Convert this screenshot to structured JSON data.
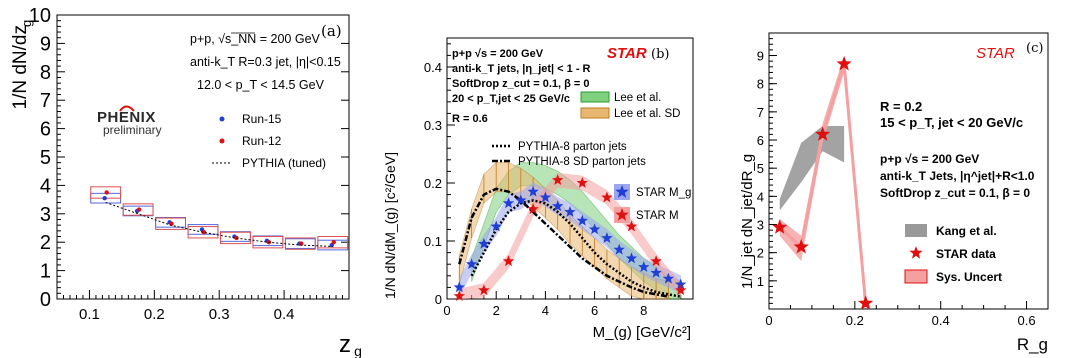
{
  "chart_data": [
    {
      "type": "scatter",
      "panel": "(a)",
      "xlabel": "z_g",
      "ylabel": "1/N dN/dz_g",
      "xlim": [
        0.05,
        0.5
      ],
      "ylim": [
        0,
        10
      ],
      "xticks": [
        "0.1",
        "0.2",
        "0.3",
        "0.4"
      ],
      "yticks": [
        "0",
        "1",
        "2",
        "3",
        "4",
        "5",
        "6",
        "7",
        "8",
        "9",
        "10"
      ],
      "annotations": [
        "p+p, √s_NN = 200 GeV",
        "anti-k_T R=0.3 jet, |η|<0.15",
        "12.0 < p_T < 14.5 GeV"
      ],
      "logo": [
        "PHENIX",
        "preliminary"
      ],
      "legend_position": "right",
      "x": [
        0.125,
        0.175,
        0.225,
        0.275,
        0.325,
        0.375,
        0.425,
        0.475
      ],
      "series": [
        {
          "name": "Run-15",
          "color": "#1f3fd6",
          "values": [
            3.55,
            3.1,
            2.7,
            2.45,
            2.2,
            2.05,
            1.95,
            1.9
          ]
        },
        {
          "name": "Run-12",
          "color": "#e01010",
          "values": [
            3.75,
            3.15,
            2.65,
            2.35,
            2.15,
            2.0,
            1.95,
            2.0
          ]
        },
        {
          "name": "PYTHIA (tuned)",
          "color": "#000000",
          "style": "dashed",
          "values": [
            3.4,
            3.0,
            2.6,
            2.35,
            2.15,
            2.0,
            1.9,
            1.85
          ]
        }
      ]
    },
    {
      "type": "scatter",
      "panel": "(b)",
      "title": "STAR",
      "xlabel": "M_(g) [GeV/c²]",
      "ylabel": "1/N dN/dM_(g) [c²/GeV]",
      "xlim": [
        0,
        10
      ],
      "ylim": [
        0,
        0.45
      ],
      "xticks": [
        "0",
        "2",
        "4",
        "6",
        "8"
      ],
      "yticks": [
        "0",
        "0.1",
        "0.2",
        "0.3",
        "0.4"
      ],
      "annotations": [
        "p+p √s = 200 GeV",
        "anti-k_T jets, |η_jet| < 1 - R",
        "SoftDrop z_cut = 0.1, β = 0",
        "20 < p_T,jet < 25 GeV/c",
        "R = 0.6"
      ],
      "series": [
        {
          "name": "Lee et al.",
          "color": "#2e9e2e",
          "x": [
            1,
            1.5,
            2,
            2.5,
            3,
            3.5,
            4,
            4.5,
            5,
            5.5,
            6,
            6.5,
            7,
            7.5,
            8,
            8.5,
            9,
            9.5
          ],
          "values": [
            0.05,
            0.11,
            0.17,
            0.2,
            0.215,
            0.215,
            0.21,
            0.2,
            0.185,
            0.165,
            0.14,
            0.115,
            0.09,
            0.07,
            0.05,
            0.035,
            0.02,
            0.01
          ]
        },
        {
          "name": "Lee et al. SD",
          "color": "#c07a1a",
          "x": [
            0.5,
            1,
            1.5,
            2,
            2.5,
            3,
            3.5,
            4,
            4.5,
            5,
            5.5,
            6,
            6.5,
            7,
            7.5,
            8,
            8.5,
            9
          ],
          "values": [
            0.05,
            0.13,
            0.19,
            0.21,
            0.21,
            0.2,
            0.185,
            0.165,
            0.145,
            0.12,
            0.1,
            0.08,
            0.06,
            0.045,
            0.03,
            0.02,
            0.01,
            0.005
          ]
        },
        {
          "name": "PYTHIA-8 parton jets",
          "color": "#000000",
          "x": [
            1,
            1.5,
            2,
            2.5,
            3,
            3.5,
            4,
            4.5,
            5,
            5.5,
            6,
            6.5,
            7,
            7.5,
            8,
            8.5,
            9,
            9.5
          ],
          "values": [
            0.04,
            0.08,
            0.12,
            0.15,
            0.165,
            0.17,
            0.165,
            0.15,
            0.13,
            0.105,
            0.08,
            0.06,
            0.045,
            0.03,
            0.02,
            0.012,
            0.008,
            0.004
          ]
        },
        {
          "name": "PYTHIA-8 SD parton jets",
          "color": "#000000",
          "x": [
            0.5,
            1,
            1.5,
            2,
            2.5,
            3,
            3.5,
            4,
            4.5,
            5,
            5.5,
            6,
            6.5,
            7,
            7.5,
            8,
            8.5,
            9
          ],
          "values": [
            0.06,
            0.14,
            0.18,
            0.19,
            0.185,
            0.17,
            0.15,
            0.13,
            0.11,
            0.09,
            0.07,
            0.055,
            0.04,
            0.03,
            0.02,
            0.012,
            0.008,
            0.004
          ]
        },
        {
          "name": "STAR M_g",
          "color": "#1f3fd6",
          "x": [
            0.5,
            1,
            1.5,
            2,
            2.5,
            3,
            3.5,
            4,
            4.5,
            5,
            5.5,
            6,
            6.5,
            7,
            7.5,
            8,
            8.5,
            9,
            9.5
          ],
          "values": [
            0.02,
            0.06,
            0.095,
            0.125,
            0.165,
            0.17,
            0.185,
            0.175,
            0.16,
            0.15,
            0.135,
            0.12,
            0.105,
            0.085,
            0.07,
            0.055,
            0.045,
            0.035,
            0.025
          ]
        },
        {
          "name": "STAR M",
          "color": "#e01010",
          "x": [
            0.5,
            1.5,
            2.5,
            3.5,
            4.5,
            5.5,
            6.5,
            7.5,
            8.5,
            9.5
          ],
          "values": [
            0.005,
            0.015,
            0.065,
            0.155,
            0.205,
            0.2,
            0.175,
            0.125,
            0.065,
            0.015
          ]
        }
      ]
    },
    {
      "type": "scatter",
      "panel": "(c)",
      "title": "STAR",
      "xlabel": "R_g",
      "ylabel": "1/N_jet dN_jet/dR_g",
      "xlim": [
        0,
        0.65
      ],
      "ylim": [
        0,
        9.8
      ],
      "xticks": [
        "0",
        "0.2",
        "0.4",
        "0.6"
      ],
      "yticks": [
        "1",
        "2",
        "3",
        "4",
        "5",
        "6",
        "7",
        "8",
        "9"
      ],
      "annotations": [
        "R = 0.2",
        "15 < p_T, jet < 20 GeV/c",
        "p+p √s = 200 GeV",
        "anti-k_T Jets, |η^jet|+R<1.0",
        "SoftDrop z_cut = 0.1, β = 0"
      ],
      "series": [
        {
          "name": "Kang et al.",
          "color": "#999999",
          "x": [
            0.025,
            0.075,
            0.125,
            0.175
          ],
          "low": [
            3.5,
            4.5,
            5.6,
            5.2
          ],
          "high": [
            3.9,
            5.9,
            6.5,
            6.5
          ]
        },
        {
          "name": "STAR data",
          "color": "#e01010",
          "x": [
            0.025,
            0.075,
            0.125,
            0.175,
            0.225
          ],
          "values": [
            2.9,
            2.2,
            6.2,
            8.7,
            0.2
          ]
        },
        {
          "name": "Sys. Uncert",
          "color": "#f08080",
          "x": [
            0.025,
            0.075,
            0.125,
            0.175
          ],
          "low": [
            2.6,
            1.7,
            5.9,
            8.4
          ],
          "high": [
            3.2,
            2.6,
            6.6,
            9.0
          ]
        }
      ]
    }
  ]
}
